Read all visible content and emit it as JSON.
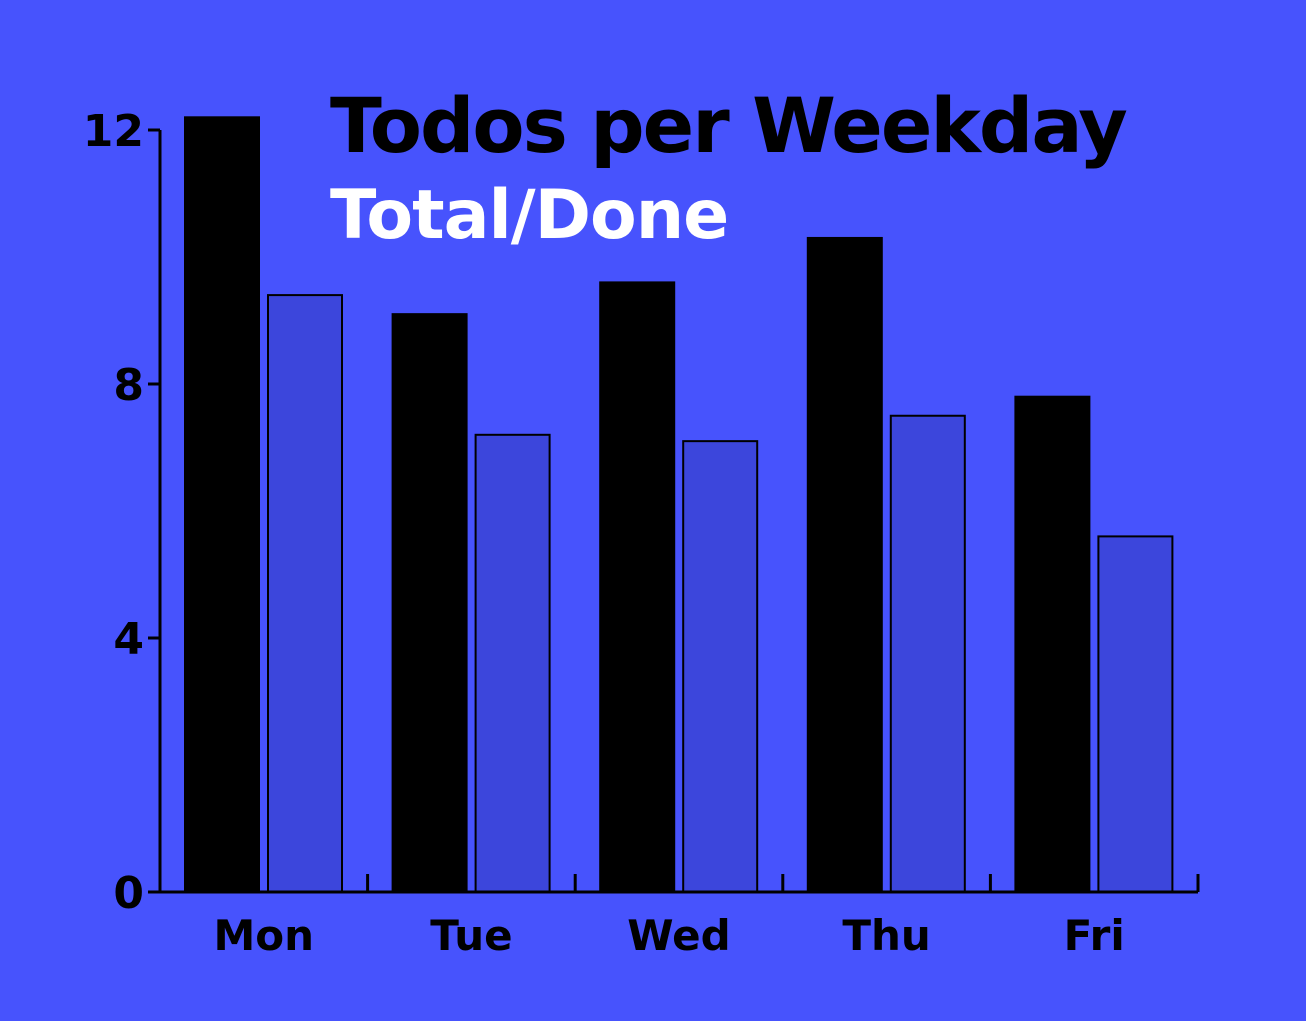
{
  "colors": {
    "background": "#4753fd",
    "total": "#000000",
    "done": "#3c46dc",
    "title": "#000000",
    "subtitle": "#ffffff",
    "axis": "#000000"
  },
  "chart_data": {
    "type": "bar",
    "title": "Todos per Weekday",
    "subtitle": "Total/Done",
    "xlabel": "",
    "ylabel": "",
    "categories": [
      "Mon",
      "Tue",
      "Wed",
      "Thu",
      "Fri"
    ],
    "series": [
      {
        "values": [
          12.2,
          9.1,
          9.6,
          10.3,
          7.8
        ]
      },
      {
        "values": [
          9.4,
          7.2,
          7.1,
          7.5,
          5.6
        ]
      }
    ],
    "yticks": [
      0,
      4,
      8,
      12
    ],
    "ylim": [
      0,
      12
    ],
    "grid": false,
    "legend": "none"
  }
}
